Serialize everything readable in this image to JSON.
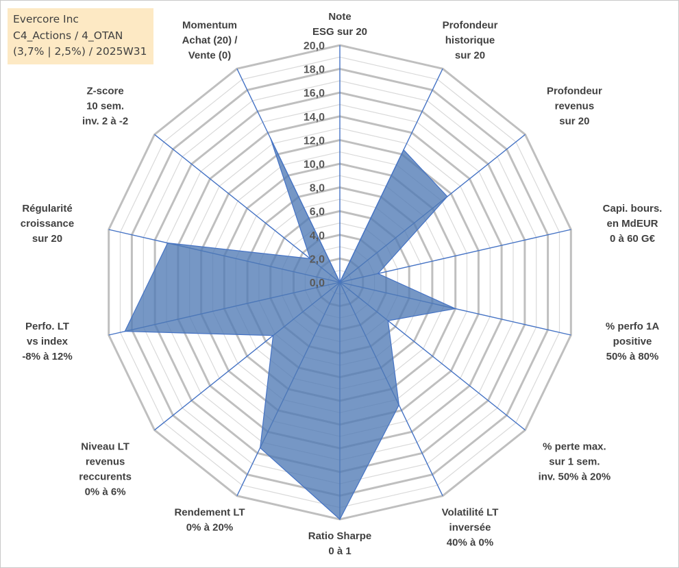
{
  "info": {
    "line1": "Evercore Inc",
    "line2": "C4_Actions / 4_OTAN",
    "line3": "(3,7% | 2,5%) / 2025W31"
  },
  "colors": {
    "fill": "#4f7ab5",
    "spoke": "#4472c4",
    "grid": "#bfbfbf",
    "info_bg": "#fde9c4"
  },
  "chart_data": {
    "type": "radar",
    "rmin": 0,
    "rmax": 20,
    "ticks": [
      "0,0",
      "2,0",
      "4,0",
      "6,0",
      "8,0",
      "10,0",
      "12,0",
      "14,0",
      "16,0",
      "18,0",
      "20,0"
    ],
    "axes": [
      [
        "Note",
        "ESG sur 20"
      ],
      [
        "Profondeur",
        "historique",
        "sur 20"
      ],
      [
        "Profondeur",
        "revenus",
        "sur 20"
      ],
      [
        "Capi. bours.",
        "en MdEUR",
        "0 à 60 G€"
      ],
      [
        "% perfo 1A",
        "positive",
        "50% à 80%"
      ],
      [
        "% perte max.",
        "sur 1 sem.",
        "inv. 50% à 20%"
      ],
      [
        "Volatilité LT",
        "inversée",
        "40% à 0%"
      ],
      [
        "Ratio Sharpe",
        "0 à 1"
      ],
      [
        "Rendement LT",
        "0% à 20%"
      ],
      [
        "Niveau LT",
        "revenus",
        "reccurents",
        "0% à 6%"
      ],
      [
        "Perfo. LT",
        "vs index",
        "-8% à 12%"
      ],
      [
        "Régularité",
        "croissance",
        "sur 20"
      ],
      [
        "Z-score",
        "10 sem.",
        "inv. 2 à -2"
      ],
      [
        "Momentum",
        "Achat (20) /",
        "Vente (0)"
      ]
    ],
    "values": [
      0,
      12.4,
      11.6,
      3.3,
      10.0,
      5.2,
      11.5,
      20.0,
      15.5,
      7.2,
      18.6,
      14.9,
      3.2,
      13.5
    ],
    "grid": true,
    "legend": "none"
  }
}
